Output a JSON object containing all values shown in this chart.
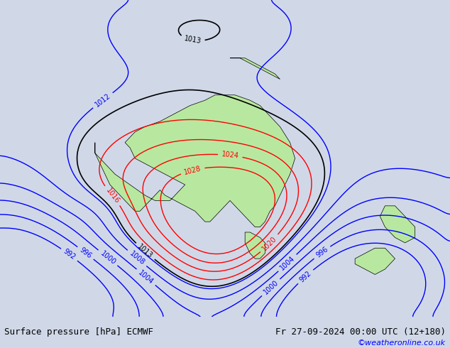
{
  "title_left": "Surface pressure [hPa] ECMWF",
  "title_right": "Fr 27-09-2024 00:00 UTC (12+180)",
  "watermark": "©weatheronline.co.uk",
  "bg_color": "#d0d8e8",
  "land_color": "#b8e8a0",
  "figsize": [
    6.34,
    4.9
  ],
  "dpi": 100,
  "contour_levels_blue": [
    992,
    996,
    1000,
    1004,
    1008,
    1012
  ],
  "contour_levels_red": [
    1016,
    1020,
    1024,
    1028
  ],
  "contour_levels_black": [
    1013
  ],
  "title_fontsize": 9,
  "label_fontsize": 7
}
